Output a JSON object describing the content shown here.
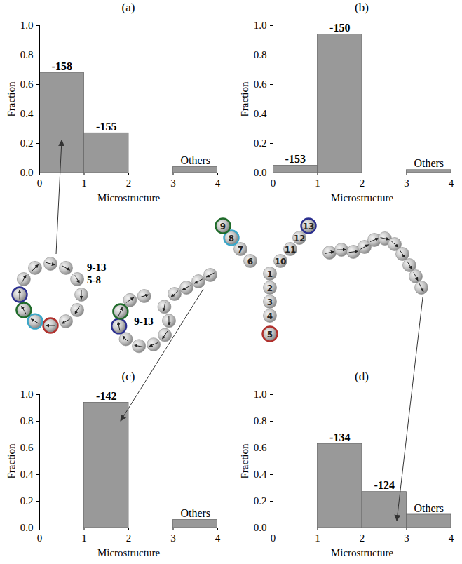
{
  "chart_data": [
    {
      "type": "bar",
      "title": "(a)",
      "xlabel": "Microstructure",
      "ylabel": "Fraction",
      "bins": [
        0,
        1,
        2,
        3,
        4
      ],
      "values": [
        0.68,
        0.27,
        0,
        0.04
      ],
      "annotations": [
        "-158",
        "-155",
        null,
        "Others"
      ],
      "color": "#999999",
      "xlim": [
        0,
        4
      ],
      "xticks": [
        0,
        1,
        2,
        3,
        4
      ],
      "ylim": [
        0,
        1
      ],
      "yticks": [
        {
          "value": 0,
          "label": "0.0"
        },
        {
          "value": 0.2,
          "label": "0.2"
        },
        {
          "value": 0.4,
          "label": "0.4"
        },
        {
          "value": 0.6,
          "label": "0.6"
        },
        {
          "value": 0.8,
          "label": "0.8"
        },
        {
          "value": 1,
          "label": "1.0"
        }
      ]
    },
    {
      "type": "bar",
      "title": "(b)",
      "xlabel": "Microstructure",
      "ylabel": "Fraction",
      "bins": [
        0,
        1,
        2,
        3,
        4
      ],
      "values": [
        0.05,
        0.94,
        0,
        0.02
      ],
      "annotations": [
        "-153",
        "-150",
        null,
        "Others"
      ],
      "color": "#999999",
      "xlim": [
        0,
        4
      ],
      "xticks": [
        0,
        1,
        2,
        3,
        4
      ],
      "ylim": [
        0,
        1
      ],
      "yticks": [
        {
          "value": 0,
          "label": "0.0"
        },
        {
          "value": 0.2,
          "label": "0.2"
        },
        {
          "value": 0.4,
          "label": "0.4"
        },
        {
          "value": 0.6,
          "label": "0.6"
        },
        {
          "value": 0.8,
          "label": "0.8"
        },
        {
          "value": 1,
          "label": "1.0"
        }
      ]
    },
    {
      "type": "bar",
      "title": "(c)",
      "xlabel": "Microstructure",
      "ylabel": "Fraction",
      "bins": [
        0,
        1,
        2,
        3,
        4
      ],
      "values": [
        0,
        0.94,
        0,
        0.06
      ],
      "annotations": [
        null,
        "-142",
        null,
        "Others"
      ],
      "color": "#999999",
      "xlim": [
        0,
        4
      ],
      "xticks": [
        0,
        1,
        2,
        3,
        4
      ],
      "ylim": [
        0,
        1
      ],
      "yticks": [
        {
          "value": 0,
          "label": "0.0"
        },
        {
          "value": 0.2,
          "label": "0.2"
        },
        {
          "value": 0.4,
          "label": "0.4"
        },
        {
          "value": 0.6,
          "label": "0.6"
        },
        {
          "value": 0.8,
          "label": "0.8"
        },
        {
          "value": 1,
          "label": "1.0"
        }
      ]
    },
    {
      "type": "bar",
      "title": "(d)",
      "xlabel": "Microstructure",
      "ylabel": "Fraction",
      "bins": [
        0,
        1,
        2,
        3,
        4
      ],
      "values": [
        0,
        0.63,
        0.27,
        0.1
      ],
      "annotations": [
        null,
        "-134",
        "-124",
        "Others"
      ],
      "color": "#999999",
      "xlim": [
        0,
        4
      ],
      "xticks": [
        0,
        1,
        2,
        3,
        4
      ],
      "ylim": [
        0,
        1
      ],
      "yticks": [
        {
          "value": 0,
          "label": "0.0"
        },
        {
          "value": 0.2,
          "label": "0.2"
        },
        {
          "value": 0.4,
          "label": "0.4"
        },
        {
          "value": 0.6,
          "label": "0.6"
        },
        {
          "value": 0.8,
          "label": "0.8"
        },
        {
          "value": 1,
          "label": "1.0"
        }
      ]
    }
  ],
  "diagram": {
    "center_beads": [
      "1",
      "2",
      "3",
      "4",
      "5",
      "6",
      "7",
      "8",
      "9",
      "10",
      "11",
      "12",
      "13"
    ],
    "ring_labels": [
      "9-13",
      "5-8"
    ],
    "loop_label": "9-13"
  }
}
